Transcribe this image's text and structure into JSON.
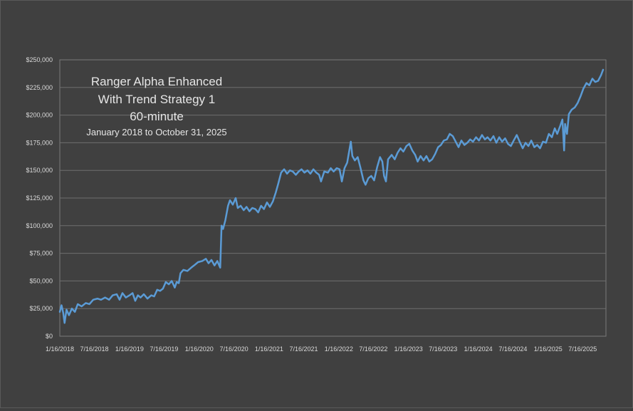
{
  "chart_data": {
    "type": "line",
    "title_lines": [
      "Ranger Alpha Enhanced",
      "With Trend Strategy 1",
      "60-minute",
      "January 2018 to October 31, 2025"
    ],
    "xlabel": "",
    "ylabel": "",
    "ylim": [
      0,
      250000
    ],
    "y_ticks": [
      0,
      25000,
      50000,
      75000,
      100000,
      125000,
      150000,
      175000,
      200000,
      225000,
      250000
    ],
    "y_tick_labels": [
      "$0",
      "$25,000",
      "$50,000",
      "$75,000",
      "$100,000",
      "$125,000",
      "$150,000",
      "$175,000",
      "$200,000",
      "$225,000",
      "$250,000"
    ],
    "x_range": [
      "2018-01-16",
      "2025-11-15"
    ],
    "x_ticks": [
      "2018-01-16",
      "2018-07-16",
      "2019-01-16",
      "2019-07-16",
      "2020-01-16",
      "2020-07-16",
      "2021-01-16",
      "2021-07-16",
      "2022-01-16",
      "2022-07-16",
      "2023-01-16",
      "2023-07-16",
      "2024-01-16",
      "2024-07-16",
      "2025-01-16",
      "2025-07-16"
    ],
    "x_tick_labels": [
      "1/16/2018",
      "7/16/2018",
      "1/16/2019",
      "7/16/2019",
      "1/16/2020",
      "7/16/2020",
      "1/16/2021",
      "7/16/2021",
      "1/16/2022",
      "7/16/2022",
      "1/16/2023",
      "7/16/2023",
      "1/16/2024",
      "7/16/2024",
      "1/16/2025",
      "7/16/2025"
    ],
    "grid": true,
    "line_color": "#5b9bd5",
    "background_color": "#404040",
    "gridline_color": "#6e6e6e",
    "series": [
      {
        "points": [
          [
            "2018-01-16",
            22000
          ],
          [
            "2018-01-25",
            28000
          ],
          [
            "2018-02-03",
            21000
          ],
          [
            "2018-02-10",
            12000
          ],
          [
            "2018-02-20",
            24000
          ],
          [
            "2018-03-05",
            19000
          ],
          [
            "2018-03-20",
            25000
          ],
          [
            "2018-04-05",
            22000
          ],
          [
            "2018-04-20",
            29000
          ],
          [
            "2018-05-10",
            27000
          ],
          [
            "2018-06-01",
            30000
          ],
          [
            "2018-06-20",
            29000
          ],
          [
            "2018-07-10",
            33000
          ],
          [
            "2018-08-01",
            34000
          ],
          [
            "2018-08-20",
            33000
          ],
          [
            "2018-09-10",
            35000
          ],
          [
            "2018-10-01",
            33000
          ],
          [
            "2018-10-20",
            37000
          ],
          [
            "2018-11-10",
            38000
          ],
          [
            "2018-11-25",
            33000
          ],
          [
            "2018-12-10",
            39000
          ],
          [
            "2018-12-28",
            35000
          ],
          [
            "2019-01-16",
            37000
          ],
          [
            "2019-02-01",
            39000
          ],
          [
            "2019-02-15",
            32000
          ],
          [
            "2019-03-01",
            37000
          ],
          [
            "2019-03-15",
            35000
          ],
          [
            "2019-04-01",
            38000
          ],
          [
            "2019-04-20",
            34000
          ],
          [
            "2019-05-10",
            37000
          ],
          [
            "2019-05-25",
            36000
          ],
          [
            "2019-06-10",
            42000
          ],
          [
            "2019-06-25",
            41000
          ],
          [
            "2019-07-10",
            43000
          ],
          [
            "2019-07-25",
            49000
          ],
          [
            "2019-08-10",
            47000
          ],
          [
            "2019-08-25",
            50000
          ],
          [
            "2019-09-10",
            44000
          ],
          [
            "2019-09-20",
            49000
          ],
          [
            "2019-10-01",
            48000
          ],
          [
            "2019-10-10",
            57000
          ],
          [
            "2019-10-25",
            60000
          ],
          [
            "2019-11-15",
            59000
          ],
          [
            "2019-12-05",
            62000
          ],
          [
            "2019-12-20",
            64000
          ],
          [
            "2020-01-10",
            67000
          ],
          [
            "2020-02-01",
            68000
          ],
          [
            "2020-02-20",
            70000
          ],
          [
            "2020-03-05",
            66000
          ],
          [
            "2020-03-20",
            69000
          ],
          [
            "2020-04-05",
            64000
          ],
          [
            "2020-04-20",
            68000
          ],
          [
            "2020-05-05",
            62000
          ],
          [
            "2020-05-12",
            100000
          ],
          [
            "2020-05-20",
            97000
          ],
          [
            "2020-06-01",
            105000
          ],
          [
            "2020-06-15",
            118000
          ],
          [
            "2020-06-25",
            123000
          ],
          [
            "2020-07-10",
            119000
          ],
          [
            "2020-07-25",
            125000
          ],
          [
            "2020-08-05",
            116000
          ],
          [
            "2020-08-20",
            118000
          ],
          [
            "2020-09-05",
            114000
          ],
          [
            "2020-09-20",
            117000
          ],
          [
            "2020-10-05",
            113000
          ],
          [
            "2020-10-20",
            116000
          ],
          [
            "2020-11-05",
            115000
          ],
          [
            "2020-11-20",
            112000
          ],
          [
            "2020-12-05",
            118000
          ],
          [
            "2020-12-20",
            115000
          ],
          [
            "2021-01-05",
            121000
          ],
          [
            "2021-01-20",
            117000
          ],
          [
            "2021-02-05",
            122000
          ],
          [
            "2021-02-20",
            130000
          ],
          [
            "2021-03-05",
            138000
          ],
          [
            "2021-03-20",
            148000
          ],
          [
            "2021-04-05",
            151000
          ],
          [
            "2021-04-20",
            147000
          ],
          [
            "2021-05-05",
            150000
          ],
          [
            "2021-05-20",
            149000
          ],
          [
            "2021-06-05",
            146000
          ],
          [
            "2021-06-20",
            149000
          ],
          [
            "2021-07-05",
            151000
          ],
          [
            "2021-07-20",
            148000
          ],
          [
            "2021-08-05",
            150000
          ],
          [
            "2021-08-20",
            147000
          ],
          [
            "2021-09-05",
            151000
          ],
          [
            "2021-09-20",
            148000
          ],
          [
            "2021-10-05",
            146000
          ],
          [
            "2021-10-15",
            140000
          ],
          [
            "2021-11-01",
            149000
          ],
          [
            "2021-11-20",
            148000
          ],
          [
            "2021-12-05",
            152000
          ],
          [
            "2021-12-20",
            149000
          ],
          [
            "2022-01-05",
            152000
          ],
          [
            "2022-01-20",
            151000
          ],
          [
            "2022-02-01",
            140000
          ],
          [
            "2022-02-15",
            152000
          ],
          [
            "2022-03-01",
            157000
          ],
          [
            "2022-03-10",
            166000
          ],
          [
            "2022-03-20",
            176000
          ],
          [
            "2022-03-28",
            163000
          ],
          [
            "2022-04-10",
            159000
          ],
          [
            "2022-04-25",
            162000
          ],
          [
            "2022-05-10",
            152000
          ],
          [
            "2022-05-25",
            141000
          ],
          [
            "2022-06-05",
            137000
          ],
          [
            "2022-06-20",
            143000
          ],
          [
            "2022-07-05",
            145000
          ],
          [
            "2022-07-20",
            141000
          ],
          [
            "2022-08-05",
            153000
          ],
          [
            "2022-08-20",
            162000
          ],
          [
            "2022-09-01",
            158000
          ],
          [
            "2022-09-10",
            145000
          ],
          [
            "2022-09-20",
            140000
          ],
          [
            "2022-10-01",
            160000
          ],
          [
            "2022-10-20",
            164000
          ],
          [
            "2022-11-05",
            160000
          ],
          [
            "2022-11-20",
            166000
          ],
          [
            "2022-12-05",
            170000
          ],
          [
            "2022-12-20",
            167000
          ],
          [
            "2023-01-05",
            172000
          ],
          [
            "2023-01-20",
            174000
          ],
          [
            "2023-02-05",
            168000
          ],
          [
            "2023-02-20",
            164000
          ],
          [
            "2023-03-05",
            158000
          ],
          [
            "2023-03-20",
            163000
          ],
          [
            "2023-04-05",
            159000
          ],
          [
            "2023-04-20",
            163000
          ],
          [
            "2023-05-05",
            158000
          ],
          [
            "2023-05-20",
            160000
          ],
          [
            "2023-06-05",
            165000
          ],
          [
            "2023-06-20",
            171000
          ],
          [
            "2023-07-05",
            173000
          ],
          [
            "2023-07-20",
            177000
          ],
          [
            "2023-08-05",
            178000
          ],
          [
            "2023-08-20",
            183000
          ],
          [
            "2023-09-05",
            181000
          ],
          [
            "2023-09-20",
            176000
          ],
          [
            "2023-10-05",
            171000
          ],
          [
            "2023-10-20",
            177000
          ],
          [
            "2023-11-05",
            173000
          ],
          [
            "2023-11-20",
            175000
          ],
          [
            "2023-12-05",
            178000
          ],
          [
            "2023-12-20",
            176000
          ],
          [
            "2024-01-05",
            180000
          ],
          [
            "2024-01-20",
            177000
          ],
          [
            "2024-02-05",
            182000
          ],
          [
            "2024-02-20",
            178000
          ],
          [
            "2024-03-05",
            180000
          ],
          [
            "2024-03-20",
            177000
          ],
          [
            "2024-04-05",
            181000
          ],
          [
            "2024-04-20",
            175000
          ],
          [
            "2024-05-05",
            180000
          ],
          [
            "2024-05-20",
            176000
          ],
          [
            "2024-06-05",
            179000
          ],
          [
            "2024-06-20",
            174000
          ],
          [
            "2024-07-05",
            172000
          ],
          [
            "2024-07-20",
            177000
          ],
          [
            "2024-08-05",
            182000
          ],
          [
            "2024-08-20",
            176000
          ],
          [
            "2024-09-05",
            170000
          ],
          [
            "2024-09-20",
            175000
          ],
          [
            "2024-10-05",
            172000
          ],
          [
            "2024-10-20",
            177000
          ],
          [
            "2024-11-05",
            171000
          ],
          [
            "2024-11-20",
            173000
          ],
          [
            "2024-12-05",
            170000
          ],
          [
            "2024-12-20",
            176000
          ],
          [
            "2025-01-05",
            175000
          ],
          [
            "2025-01-20",
            183000
          ],
          [
            "2025-02-05",
            180000
          ],
          [
            "2025-02-20",
            188000
          ],
          [
            "2025-03-05",
            183000
          ],
          [
            "2025-03-20",
            190000
          ],
          [
            "2025-04-01",
            196000
          ],
          [
            "2025-04-10",
            168000
          ],
          [
            "2025-04-15",
            192000
          ],
          [
            "2025-04-25",
            183000
          ],
          [
            "2025-05-05",
            201000
          ],
          [
            "2025-05-20",
            205000
          ],
          [
            "2025-06-05",
            207000
          ],
          [
            "2025-06-20",
            211000
          ],
          [
            "2025-07-05",
            217000
          ],
          [
            "2025-07-20",
            224000
          ],
          [
            "2025-08-05",
            229000
          ],
          [
            "2025-08-20",
            227000
          ],
          [
            "2025-09-05",
            233000
          ],
          [
            "2025-09-20",
            230000
          ],
          [
            "2025-10-05",
            231000
          ],
          [
            "2025-10-20",
            236000
          ],
          [
            "2025-10-31",
            241000
          ]
        ]
      }
    ]
  }
}
